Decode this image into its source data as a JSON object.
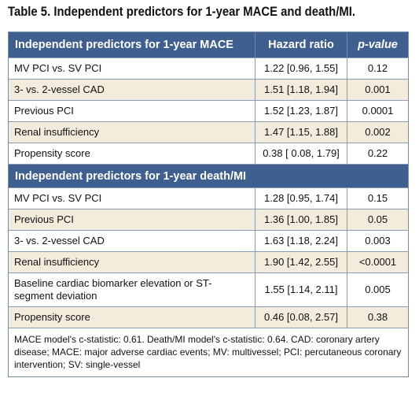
{
  "title": "Table 5. Independent predictors for 1-year MACE and death/MI.",
  "header": {
    "col1": "Independent predictors for 1-year MACE",
    "col2": "Hazard ratio",
    "col3": "p-value"
  },
  "mace_rows": [
    {
      "predictor": "MV PCI vs. SV PCI",
      "hr": "1.22 [0.96, 1.55]",
      "p": "0.12"
    },
    {
      "predictor": "3- vs. 2-vessel CAD",
      "hr": "1.51 [1.18, 1.94]",
      "p": "0.001"
    },
    {
      "predictor": "Previous PCI",
      "hr": "1.52 [1.23, 1.87]",
      "p": "0.0001"
    },
    {
      "predictor": "Renal insufficiency",
      "hr": "1.47 [1.15, 1.88]",
      "p": "0.002"
    },
    {
      "predictor": "Propensity score",
      "hr": "0.38 [ 0.08, 1.79]",
      "p": "0.22"
    }
  ],
  "section2_title": "Independent predictors for 1-year death/MI",
  "death_rows": [
    {
      "predictor": "MV PCI vs. SV PCI",
      "hr": "1.28 [0.95, 1.74]",
      "p": "0.15"
    },
    {
      "predictor": "Previous PCI",
      "hr": "1.36 [1.00, 1.85]",
      "p": "0.05"
    },
    {
      "predictor": "3- vs. 2-vessel CAD",
      "hr": "1.63 [1.18, 2.24]",
      "p": "0.003"
    },
    {
      "predictor": "Renal insufficiency",
      "hr": "1.90 [1.42, 2.55]",
      "p": "<0.0001"
    },
    {
      "predictor": "Baseline cardiac biomarker elevation or ST-segment deviation",
      "hr": "1.55 [1.14, 2.11]",
      "p": "0.005"
    },
    {
      "predictor": "Propensity score",
      "hr": "0.46 [0.08, 2.57]",
      "p": "0.38"
    }
  ],
  "footnote": "MACE model's c-statistic: 0.61. Death/MI model's c-statistic: 0.64. CAD: coronary artery disease; MACE: major adverse cardiac events; MV: multivessel; PCI: percutaneous coronary intervention; SV: single-vessel",
  "colors": {
    "header_bg": "#3e5f8f",
    "stripe_bg": "#f3ecdc",
    "border": "#8a9ab0"
  }
}
